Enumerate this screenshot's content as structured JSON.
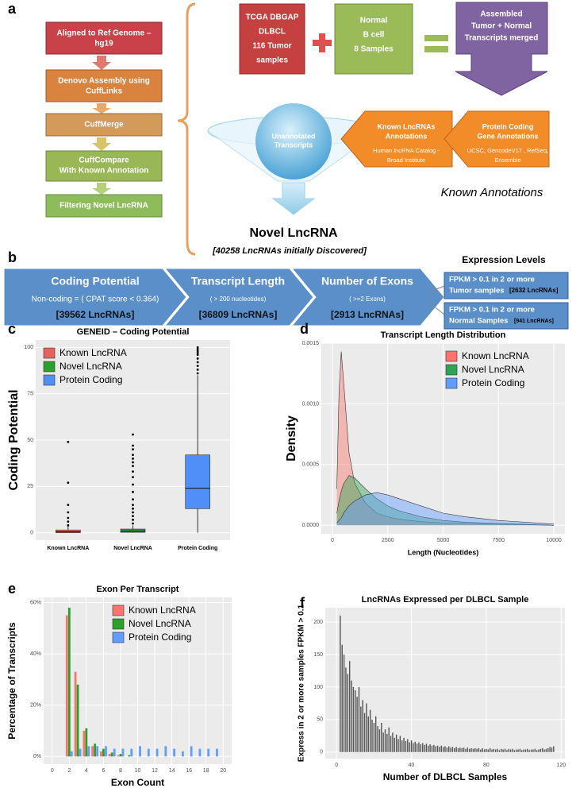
{
  "diagram": {
    "panel_a": "a",
    "panel_b": "b",
    "pipeline": [
      [
        "Aligned to Ref Genome –",
        "hg19"
      ],
      [
        "Denovo Assembly using",
        "CuffLinks"
      ],
      [
        "CuffMerge"
      ],
      [
        "CuffCompare",
        "With Known Annotation"
      ],
      [
        "Filtering Novel LncRNA"
      ]
    ],
    "tumor_box": [
      "TCGA DBGAP",
      "DLBCL",
      "116 Tumor",
      "samples"
    ],
    "normal_box": [
      "Normal",
      "B cell",
      "8 Samples"
    ],
    "merged_box": [
      "Assembled",
      "Tumor + Normal",
      "Transcripts merged"
    ],
    "unannotated": [
      "Unannotated",
      "Transcripts"
    ],
    "known_lnc": [
      "Known LncRNAs",
      "Annotations",
      "Human lncRNA Catalog -",
      "Broad Institute"
    ],
    "protein_coding": [
      "Protein Coding",
      "Gene Annotations",
      "UCSC, GencodeV17 , RefSeq,",
      "Ensemble"
    ],
    "known_annotations": "Known Annotations",
    "novel": "Novel LncRNA",
    "discovered": "[40258  LncRNAs initially Discovered]",
    "filters": [
      {
        "title": "Coding Potential",
        "criterion": "Non-coding = ( CPAT score < 0.364)",
        "count": "[39562 LncRNAs]"
      },
      {
        "title": "Transcript Length",
        "criterion": "( > 200 nucleotides)",
        "count": "[36809 LncRNAs]"
      },
      {
        "title": "Number of Exons",
        "criterion": "( >=2 Exons)",
        "count": "[2913 LncRNAs]"
      }
    ],
    "expression_title": "Expression Levels",
    "expression": [
      {
        "lines": [
          "FPKM > 0.1 in 2 or more",
          "Tumor samples"
        ],
        "count": "[2632 LncRNAs]"
      },
      {
        "lines": [
          "FPKM > 0.1 in 2 or more",
          "Normal Samples"
        ],
        "count": "[941 LncRNAs]"
      }
    ]
  },
  "chart_data": [
    {
      "type": "box",
      "panel": "c",
      "title": "GENEID – Coding Potential",
      "y_label": "Coding Potential",
      "categories": [
        "Known LncRNA",
        "Novel LncRNA",
        "Protein Coding"
      ],
      "series": [
        {
          "name": "Known LncRNA",
          "color": "#e8625c",
          "min": 0,
          "q1": 0,
          "median": 0.5,
          "q3": 1.5,
          "max": 3.5,
          "outliers": [
            4,
            6,
            8,
            11,
            15,
            27,
            49
          ]
        },
        {
          "name": "Novel LncRNA",
          "color": "#2ca02c",
          "min": 0,
          "q1": 0.2,
          "median": 0.8,
          "q3": 2,
          "max": 4,
          "outliers": [
            5,
            7,
            9,
            11,
            13,
            15,
            18,
            22,
            26,
            30,
            33,
            36,
            38,
            40,
            42,
            45,
            47,
            53
          ]
        },
        {
          "name": "Protein Coding",
          "color": "#4f8ff7",
          "min": 0,
          "q1": 13,
          "median": 24,
          "q3": 42,
          "max": 85,
          "outliers": [
            86,
            88,
            90,
            92,
            94,
            96,
            97,
            98,
            99,
            100
          ]
        }
      ],
      "ylim": [
        -4,
        104
      ],
      "yticks": [
        0,
        25,
        50,
        75,
        100
      ],
      "grid": true,
      "legend": "top-left"
    },
    {
      "type": "area",
      "panel": "d",
      "title": "Transcript Length Distribution",
      "x_label": "Length (Nucleotides)",
      "y_label": "Density",
      "x": [
        200,
        300,
        400,
        500,
        750,
        1000,
        1500,
        2000,
        2500,
        3000,
        4000,
        5000,
        6000,
        7500,
        10000
      ],
      "series": [
        {
          "name": "Known LncRNA",
          "color": "#f8766d",
          "values": [
            0.0003,
            0.0011,
            0.00143,
            0.0012,
            0.0006,
            0.00035,
            0.00018,
            0.0001,
            7e-05,
            5e-05,
            3e-05,
            2e-05,
            1.5e-05,
            1e-05,
            0
          ]
        },
        {
          "name": "Novel LncRNA",
          "color": "#31a354",
          "values": [
            0.0001,
            0.0002,
            0.00028,
            0.00034,
            0.00041,
            0.00039,
            0.0003,
            0.00022,
            0.00016,
            0.00012,
            7e-05,
            4e-05,
            2.5e-05,
            1.5e-05,
            0
          ]
        },
        {
          "name": "Protein Coding",
          "color": "#619cff",
          "values": [
            2e-05,
            4e-05,
            6e-05,
            0.0001,
            0.00016,
            0.0002,
            0.00025,
            0.00027,
            0.00025,
            0.00022,
            0.00016,
            0.0001,
            7e-05,
            4e-05,
            1e-05
          ]
        }
      ],
      "xlim": [
        -500,
        10500
      ],
      "xticks": [
        0,
        2500,
        5000,
        7500,
        10000
      ],
      "ylim": [
        -7e-05,
        0.0015
      ],
      "yticks": [
        {
          "value": 0,
          "label": "0.0000"
        },
        {
          "value": 0.0005,
          "label": "0.0005"
        },
        {
          "value": 0.001,
          "label": "0.0010"
        },
        {
          "value": 0.0015,
          "label": "0.0015"
        }
      ],
      "grid": true,
      "legend": "top-right"
    },
    {
      "type": "bar",
      "panel": "e",
      "title": "Exon Per Transcript",
      "x_label": "Exon Count",
      "y_label": "Percentage of Transcripts",
      "x": [
        2,
        3,
        4,
        5,
        6,
        7,
        8,
        9,
        10,
        11,
        12,
        13,
        14,
        15,
        16,
        17,
        18,
        19
      ],
      "series": [
        {
          "name": "Known LncRNA",
          "color": "#f8766d",
          "values": [
            55,
            33,
            10,
            4,
            2,
            1,
            0.5,
            0,
            0,
            0,
            0,
            0,
            0,
            0,
            0,
            0,
            0,
            0
          ]
        },
        {
          "name": "Novel LncRNA",
          "color": "#2ca02c",
          "values": [
            58,
            28,
            11,
            5,
            3,
            1.5,
            1,
            0.5,
            0,
            0,
            0,
            0,
            0,
            0,
            0,
            0,
            0,
            0
          ]
        },
        {
          "name": "Protein Coding",
          "color": "#619cff",
          "values": [
            2,
            3,
            4,
            4,
            4,
            3,
            3,
            3,
            4,
            3,
            3,
            4,
            3,
            2,
            4,
            3,
            3,
            3
          ]
        }
      ],
      "xlim": [
        -1,
        21
      ],
      "xticks": [
        0,
        2,
        4,
        6,
        8,
        10,
        12,
        14,
        16,
        18,
        20
      ],
      "ylim": [
        -3,
        62
      ],
      "yticks": [
        {
          "value": 0,
          "label": "0%"
        },
        {
          "value": 20,
          "label": "20%"
        },
        {
          "value": 40,
          "label": "40%"
        },
        {
          "value": 60,
          "label": "60%"
        }
      ],
      "grid": true,
      "legend": "top-right"
    },
    {
      "type": "bar",
      "panel": "f",
      "title": "LncRNAs Expressed per DLBCL Sample",
      "x_label": "Number of DLBCL Samples",
      "y_label": "Express in 2 or more samples FPKM > 0.1",
      "x": [
        2,
        3,
        4,
        5,
        6,
        7,
        8,
        9,
        10,
        11,
        12,
        13,
        14,
        15,
        16,
        17,
        18,
        19,
        20,
        21,
        22,
        23,
        24,
        25,
        26,
        27,
        28,
        29,
        30,
        31,
        32,
        33,
        34,
        35,
        36,
        37,
        38,
        39,
        40,
        41,
        42,
        43,
        44,
        45,
        46,
        47,
        48,
        49,
        50,
        51,
        52,
        53,
        54,
        55,
        56,
        57,
        58,
        59,
        60,
        61,
        62,
        63,
        64,
        65,
        66,
        67,
        68,
        69,
        70,
        71,
        72,
        73,
        74,
        75,
        76,
        77,
        78,
        79,
        80,
        81,
        82,
        83,
        84,
        85,
        86,
        87,
        88,
        89,
        90,
        91,
        92,
        93,
        94,
        95,
        96,
        97,
        98,
        99,
        100,
        101,
        102,
        103,
        104,
        105,
        106,
        107,
        108,
        109,
        110,
        111,
        112,
        113,
        114,
        115,
        116
      ],
      "values": [
        210,
        165,
        150,
        130,
        120,
        140,
        110,
        100,
        95,
        85,
        100,
        70,
        80,
        60,
        75,
        55,
        65,
        50,
        45,
        55,
        40,
        35,
        45,
        30,
        35,
        28,
        38,
        25,
        30,
        22,
        27,
        20,
        25,
        18,
        22,
        17,
        20,
        15,
        18,
        14,
        16,
        13,
        15,
        12,
        14,
        11,
        13,
        10,
        12,
        10,
        11,
        9,
        10,
        8,
        10,
        8,
        9,
        7,
        9,
        7,
        8,
        6,
        8,
        6,
        7,
        6,
        7,
        5,
        7,
        5,
        6,
        5,
        6,
        5,
        6,
        4,
        6,
        4,
        5,
        4,
        6,
        4,
        5,
        4,
        5,
        3,
        5,
        4,
        5,
        3,
        5,
        4,
        5,
        3,
        4,
        4,
        5,
        3,
        4,
        4,
        5,
        3,
        4,
        4,
        5,
        3,
        4,
        5,
        6,
        4,
        5,
        6,
        8,
        7,
        9
      ],
      "color": "#555555",
      "xlim": [
        -6,
        122
      ],
      "xticks": [
        0,
        40,
        80,
        120
      ],
      "ylim": [
        -10,
        222
      ],
      "yticks": [
        0,
        50,
        100,
        150,
        200
      ],
      "grid": true
    }
  ]
}
